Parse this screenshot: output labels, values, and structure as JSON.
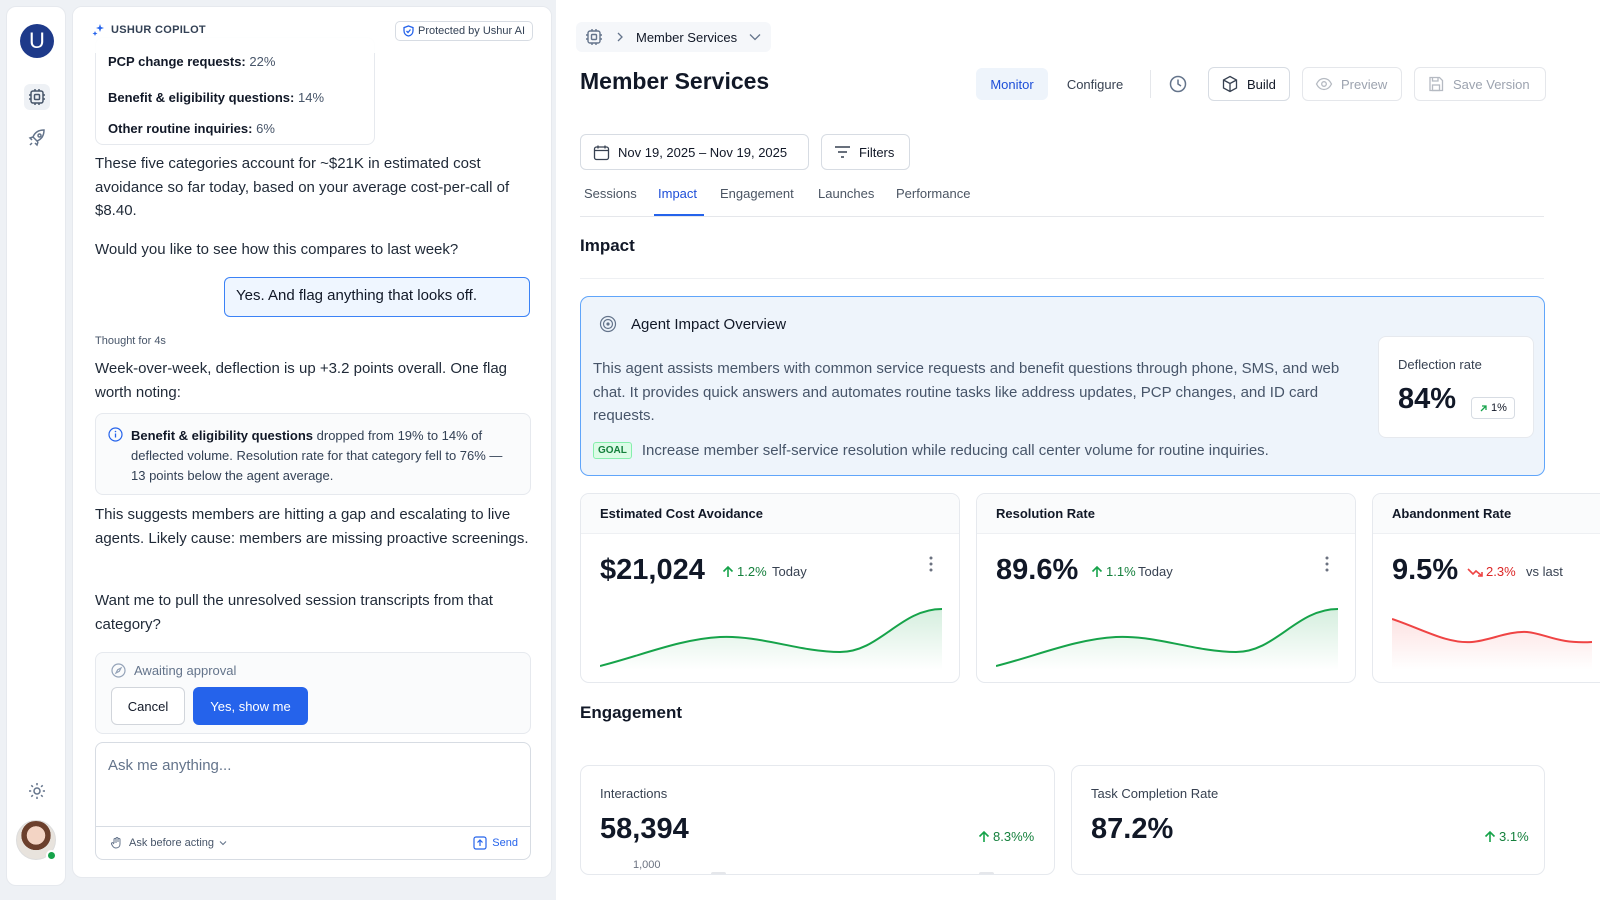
{
  "app": {
    "logo_letter": "U"
  },
  "copilot": {
    "brand": "USHUR COPILOT",
    "protected": "Protected by Ushur AI",
    "categories": [
      {
        "label": "PCP change requests:",
        "value": "22%"
      },
      {
        "label": "Benefit & eligibility questions:",
        "value": "14%"
      },
      {
        "label": "Other routine inquiries:",
        "value": "6%"
      }
    ],
    "msg1": "These five categories account for ~$21K in estimated cost avoidance so far today, based on your average cost-per-call of $8.40.",
    "msg2": "Would you like to see how this compares to last week?",
    "user_msg": "Yes. And flag anything that looks off.",
    "thought": "Thought for 4s",
    "msg3": "Week-over-week, deflection is up +3.2 points overall. One flag worth noting:",
    "flag": {
      "bold": "Benefit & eligibility questions",
      "text": " dropped from 19% to 14% of deflected volume. Resolution rate for that category fell to 76% — 13 points below the agent average."
    },
    "msg4": "This suggests members are hitting a gap and escalating to live agents. Likely cause: members are missing proactive screenings.",
    "msg5": "Want me to pull the unresolved session transcripts from that category?",
    "approval": {
      "status": "Awaiting approval",
      "cancel": "Cancel",
      "confirm": "Yes, show me"
    },
    "composer": {
      "placeholder": "Ask me anything...",
      "mode": "Ask before acting",
      "send": "Send"
    }
  },
  "main": {
    "breadcrumb": "Member Services",
    "title": "Member Services",
    "modes": {
      "monitor": "Monitor",
      "configure": "Configure"
    },
    "toolbar": {
      "build": "Build",
      "preview": "Preview",
      "save": "Save Version"
    },
    "date_range": "Nov 19, 2025 – Nov 19, 2025",
    "filters": "Filters",
    "tabs": [
      "Sessions",
      "Impact",
      "Engagement",
      "Launches",
      "Performance"
    ],
    "active_tab": "Impact",
    "impact_title": "Impact",
    "overview": {
      "title": "Agent Impact Overview",
      "description": "This agent assists members with common service requests and benefit questions through phone, SMS, and web chat. It provides quick answers and automates routine tasks like address updates, PCP changes, and ID card requests.",
      "goal_badge": "GOAL",
      "goal": "Increase member self-service resolution while reducing call center volume for routine inquiries.",
      "deflection": {
        "label": "Deflection rate",
        "value": "84%",
        "change": "1%"
      }
    },
    "kpis": [
      {
        "title": "Estimated Cost Avoidance",
        "value": "$21,024",
        "delta": "1.2%",
        "direction": "up",
        "sub": "Today",
        "color": "#16a34a"
      },
      {
        "title": "Resolution Rate",
        "value": "89.6%",
        "delta": "1.1%",
        "direction": "up",
        "sub": "Today",
        "color": "#16a34a"
      },
      {
        "title": "Abandonment Rate",
        "value": "9.5%",
        "delta": "2.3%",
        "direction": "down",
        "sub": "vs last",
        "color": "#ef4444"
      }
    ],
    "engagement_title": "Engagement",
    "engagement": [
      {
        "label": "Interactions",
        "value": "58,394",
        "delta": "8.3%%",
        "axis_tick": "1,000"
      },
      {
        "label": "Task Completion Rate",
        "value": "87.2%",
        "delta": "3.1%"
      }
    ]
  }
}
